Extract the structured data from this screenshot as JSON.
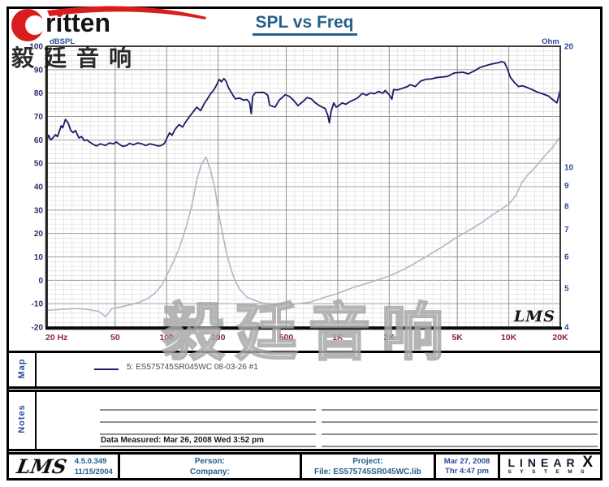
{
  "header": {
    "title": "SPL vs Freq",
    "logo_text": "ritten"
  },
  "watermarks": {
    "stamp": "毅廷音响",
    "center": "毅廷音响"
  },
  "chart_data": {
    "type": "line",
    "title": "SPL vs Freq",
    "inner_logo": "LMS",
    "x_axis": {
      "scale": "log",
      "unit": "Hz",
      "min": 20,
      "max": 20000,
      "tick_values": [
        20,
        50,
        100,
        200,
        500,
        1000,
        2000,
        5000,
        10000,
        20000
      ],
      "tick_labels": [
        "20 Hz",
        "50",
        "100",
        "200",
        "500",
        "1K",
        "2K",
        "5K",
        "10K",
        "20K"
      ]
    },
    "y_left": {
      "label": "dBSPL",
      "min": -20,
      "max": 100,
      "ticks": [
        100,
        90,
        80,
        70,
        60,
        50,
        40,
        30,
        20,
        10,
        0,
        -10,
        -20
      ]
    },
    "y_right": {
      "label": "Ohm",
      "scale": "log",
      "min": 4,
      "max": 20,
      "ticks": [
        20,
        10,
        9,
        8,
        7,
        6,
        5,
        4
      ]
    },
    "series": [
      {
        "name": "5: ES575745SR045WC  08-03-26  #1",
        "axis": "left",
        "color": "#1b1b66",
        "points": [
          [
            20,
            60
          ],
          [
            20.4,
            62
          ],
          [
            21,
            60
          ],
          [
            21.6,
            60.8
          ],
          [
            22.4,
            62.2
          ],
          [
            23,
            61.4
          ],
          [
            24.2,
            66
          ],
          [
            24.7,
            65.2
          ],
          [
            25.6,
            68.8
          ],
          [
            26.6,
            67.1
          ],
          [
            27.5,
            64
          ],
          [
            28.4,
            63.1
          ],
          [
            29.3,
            64
          ],
          [
            30.7,
            60.8
          ],
          [
            31.8,
            61.4
          ],
          [
            33,
            59.7
          ],
          [
            34.2,
            60
          ],
          [
            35.4,
            59.1
          ],
          [
            36.8,
            58.3
          ],
          [
            38.8,
            57.4
          ],
          [
            41,
            58.3
          ],
          [
            43.8,
            57.6
          ],
          [
            46.3,
            58.7
          ],
          [
            49,
            58.3
          ],
          [
            50.7,
            59.1
          ],
          [
            52.5,
            58.3
          ],
          [
            55.3,
            57.2
          ],
          [
            58.4,
            57.6
          ],
          [
            60.5,
            58.5
          ],
          [
            63.9,
            57.9
          ],
          [
            67.7,
            58.7
          ],
          [
            71.5,
            58.3
          ],
          [
            75.5,
            57.6
          ],
          [
            79.8,
            58.3
          ],
          [
            84.3,
            57.9
          ],
          [
            89,
            57.4
          ],
          [
            93,
            57.6
          ],
          [
            97,
            58.5
          ],
          [
            100,
            60.5
          ],
          [
            104,
            63
          ],
          [
            107.5,
            62
          ],
          [
            112,
            64.5
          ],
          [
            118,
            66.5
          ],
          [
            124,
            65.5
          ],
          [
            130,
            68
          ],
          [
            136,
            70
          ],
          [
            143,
            72
          ],
          [
            150,
            74
          ],
          [
            158,
            72.5
          ],
          [
            166,
            75.5
          ],
          [
            173,
            77.5
          ],
          [
            181,
            79.8
          ],
          [
            188,
            81.2
          ],
          [
            195,
            83.2
          ],
          [
            203,
            85.8
          ],
          [
            209,
            84.8
          ],
          [
            216,
            86.2
          ],
          [
            222,
            85.2
          ],
          [
            230,
            82.2
          ],
          [
            243,
            79.3
          ],
          [
            252,
            77.5
          ],
          [
            266,
            77.9
          ],
          [
            281,
            77
          ],
          [
            295,
            77.2
          ],
          [
            305,
            76
          ],
          [
            312,
            71.2
          ],
          [
            318,
            78.5
          ],
          [
            330,
            80.2
          ],
          [
            370,
            80.3
          ],
          [
            390,
            79
          ],
          [
            400,
            74.8
          ],
          [
            430,
            74
          ],
          [
            455,
            77
          ],
          [
            475,
            78.2
          ],
          [
            493,
            79.3
          ],
          [
            521,
            78.6
          ],
          [
            551,
            77
          ],
          [
            585,
            74.6
          ],
          [
            627,
            76.4
          ],
          [
            663,
            78.1
          ],
          [
            701,
            77.5
          ],
          [
            740,
            75.8
          ],
          [
            782,
            74.6
          ],
          [
            844,
            73.4
          ],
          [
            875,
            70.5
          ],
          [
            893,
            67.3
          ],
          [
            915,
            72.2
          ],
          [
            948,
            75.8
          ],
          [
            980,
            74
          ],
          [
            1013,
            74.6
          ],
          [
            1063,
            75.8
          ],
          [
            1115,
            75.2
          ],
          [
            1170,
            76.2
          ],
          [
            1300,
            77.8
          ],
          [
            1395,
            79.9
          ],
          [
            1472,
            79
          ],
          [
            1554,
            80.1
          ],
          [
            1641,
            79.7
          ],
          [
            1732,
            80.7
          ],
          [
            1829,
            79.9
          ],
          [
            1895,
            81.1
          ],
          [
            2000,
            79.3
          ],
          [
            2073,
            77.4
          ],
          [
            2120,
            81.5
          ],
          [
            2223,
            81.3
          ],
          [
            2384,
            82
          ],
          [
            2559,
            82.8
          ],
          [
            2652,
            83.6
          ],
          [
            2838,
            82.8
          ],
          [
            3049,
            85.1
          ],
          [
            3274,
            85.9
          ],
          [
            3500,
            86
          ],
          [
            3780,
            86.6
          ],
          [
            4380,
            87.1
          ],
          [
            4800,
            88.6
          ],
          [
            5385,
            88.9
          ],
          [
            5800,
            88.2
          ],
          [
            6256,
            89.4
          ],
          [
            6780,
            90.9
          ],
          [
            7330,
            91.7
          ],
          [
            7930,
            92.4
          ],
          [
            8580,
            92.9
          ],
          [
            9100,
            93.4
          ],
          [
            9460,
            93
          ],
          [
            9830,
            90.2
          ],
          [
            10200,
            86.8
          ],
          [
            10800,
            84.5
          ],
          [
            11400,
            82.8
          ],
          [
            12000,
            83.1
          ],
          [
            12700,
            82.5
          ],
          [
            13500,
            81.7
          ],
          [
            14600,
            80.5
          ],
          [
            15700,
            79.7
          ],
          [
            17000,
            78.8
          ],
          [
            18200,
            77
          ],
          [
            19100,
            75.8
          ],
          [
            19600,
            78.8
          ],
          [
            20000,
            81.5
          ]
        ]
      },
      {
        "name": "impedance",
        "axis": "right",
        "color": "#b4b4cc",
        "points": [
          [
            20,
            4.4
          ],
          [
            25,
            4.43
          ],
          [
            30,
            4.45
          ],
          [
            35,
            4.42
          ],
          [
            40,
            4.38
          ],
          [
            44,
            4.25
          ],
          [
            48,
            4.45
          ],
          [
            55,
            4.5
          ],
          [
            62,
            4.55
          ],
          [
            70,
            4.62
          ],
          [
            78,
            4.72
          ],
          [
            85,
            4.85
          ],
          [
            94,
            5.1
          ],
          [
            105,
            5.6
          ],
          [
            117,
            6.2
          ],
          [
            130,
            7.1
          ],
          [
            140,
            8.0
          ],
          [
            151,
            9.4
          ],
          [
            160,
            10.2
          ],
          [
            170,
            10.6
          ],
          [
            181,
            9.8
          ],
          [
            192,
            8.8
          ],
          [
            202,
            7.6
          ],
          [
            213,
            6.8
          ],
          [
            224,
            6.1
          ],
          [
            237,
            5.6
          ],
          [
            250,
            5.24
          ],
          [
            268,
            4.96
          ],
          [
            296,
            4.74
          ],
          [
            356,
            4.6
          ],
          [
            428,
            4.56
          ],
          [
            552,
            4.56
          ],
          [
            700,
            4.62
          ],
          [
            844,
            4.75
          ],
          [
            1000,
            4.85
          ],
          [
            1200,
            5.0
          ],
          [
            1500,
            5.15
          ],
          [
            2000,
            5.36
          ],
          [
            2500,
            5.6
          ],
          [
            3000,
            5.85
          ],
          [
            4000,
            6.3
          ],
          [
            5000,
            6.7
          ],
          [
            6000,
            7.0
          ],
          [
            7000,
            7.3
          ],
          [
            8000,
            7.6
          ],
          [
            9000,
            7.85
          ],
          [
            10000,
            8.1
          ],
          [
            11000,
            8.5
          ],
          [
            12000,
            9.2
          ],
          [
            13000,
            9.6
          ],
          [
            14000,
            9.9
          ],
          [
            16000,
            10.6
          ],
          [
            18000,
            11.2
          ],
          [
            20000,
            11.9
          ]
        ]
      }
    ],
    "colors": {
      "x_labels": "#8d2245",
      "y_left_labels": "#2b2b6b",
      "y_right_labels": "#2b4b9b"
    }
  },
  "map_section": {
    "label": "Map",
    "legend": "5: ES575745SR045WC  08-03-26   #1",
    "legend_swatch_color": "#1b1b66"
  },
  "notes_section": {
    "label": "Notes",
    "data_measured": "Data Measured: Mar 26, 2008  Wed  3:52 pm"
  },
  "footer": {
    "lms_logo": "LMS",
    "version": "4.5.0.349",
    "version_date": "11/15/2004",
    "person_label": "Person:",
    "company_label": "Company:",
    "project_label": "Project:",
    "file_label": "File: ES575745SR045WC.lib",
    "date": "Mar 27, 2008",
    "time": "Thr  4:47 pm",
    "brand": {
      "text": "LINEAR",
      "x": "X",
      "sub": "SYSTEMS"
    }
  }
}
